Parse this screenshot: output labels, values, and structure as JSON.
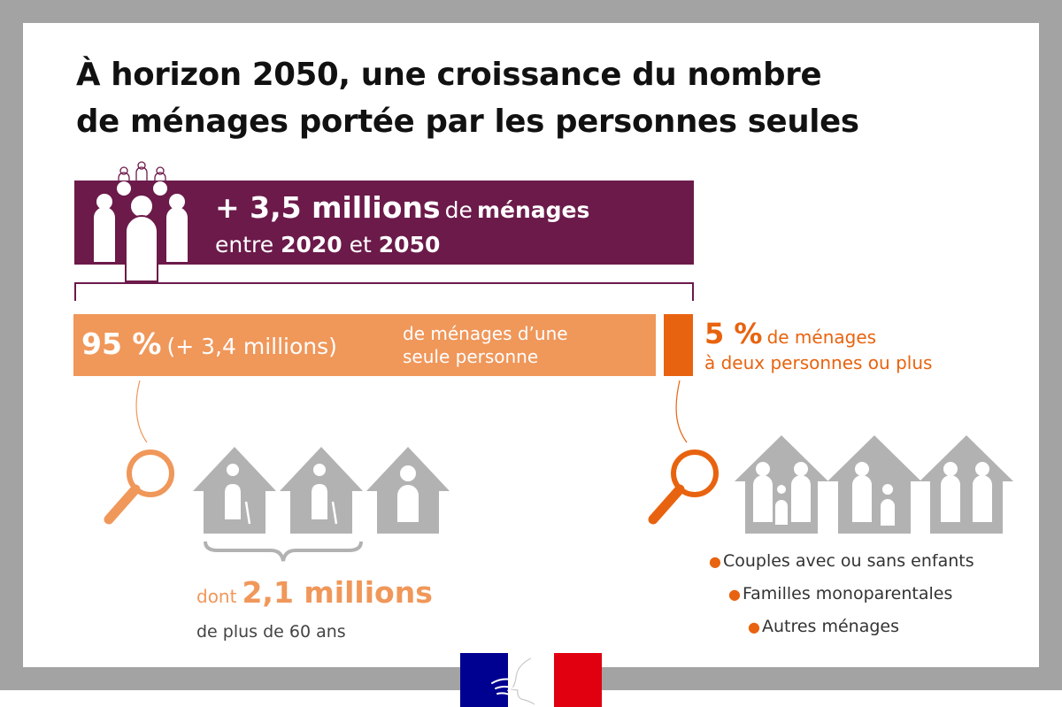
{
  "title": {
    "line1": "À horizon 2050, une croissance du nombre",
    "line2": "de ménages portée par les personnes seules"
  },
  "banner": {
    "big": "+ 3,5 millions",
    "de": "de",
    "menages": "ménages",
    "entre": "entre",
    "year_start": "2020",
    "et": "et",
    "year_end": "2050"
  },
  "single_person": {
    "percent": "95 %",
    "count": "(+ 3,4 millions)",
    "desc_line1": "de ménages d’une",
    "desc_line2": "seule personne",
    "share": 95
  },
  "multi_person": {
    "percent": "5 %",
    "desc_line1": "de ménages",
    "desc_line2": "à deux personnes ou plus",
    "share": 5
  },
  "seniors": {
    "dont": "dont",
    "value": "2,1 millions",
    "desc": "de plus de 60 ans"
  },
  "household_types": [
    "Couples avec ou sans enfants",
    "Familles monoparentales",
    "Autres ménages"
  ],
  "colors": {
    "purple": "#6b1a4a",
    "light_orange": "#f0975a",
    "dark_orange": "#e8630f",
    "gray": "#b2b2b2",
    "flag_blue": "#000091",
    "flag_red": "#e1000f"
  }
}
